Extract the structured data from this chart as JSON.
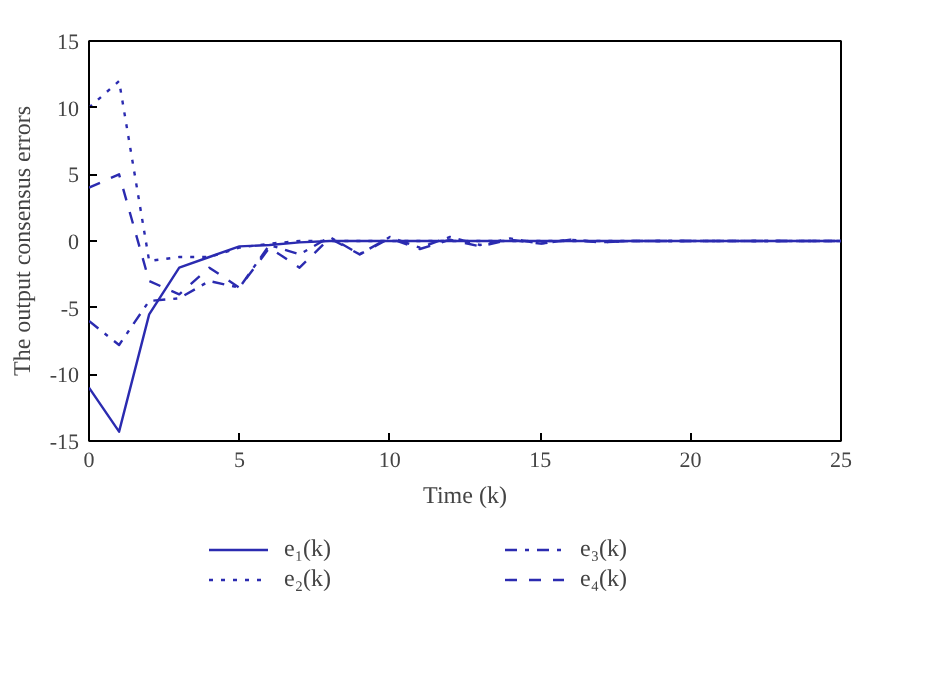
{
  "chart_data": {
    "type": "line",
    "xlabel": "Time (k)",
    "ylabel": "The output consensus errors",
    "x": [
      0,
      1,
      2,
      3,
      4,
      5,
      6,
      7,
      8,
      9,
      10,
      11,
      12,
      13,
      14,
      15,
      16,
      17,
      18,
      19,
      20,
      21,
      22,
      23,
      24,
      25
    ],
    "series": [
      {
        "name": "e₁(k)",
        "color": "#2b2bb0",
        "line_style": "solid",
        "values": [
          -11,
          -14.3,
          -5.5,
          -2,
          -1.2,
          -0.4,
          -0.3,
          -0.1,
          0,
          0,
          0,
          0,
          0,
          0,
          0,
          0,
          0,
          0,
          0,
          0,
          0,
          0,
          0,
          0,
          0,
          0
        ]
      },
      {
        "name": "e₂(k)",
        "color": "#2b2bb0",
        "line_style": "dotted",
        "values": [
          10,
          12,
          -1.5,
          -1.2,
          -1.2,
          -0.5,
          -0.2,
          0,
          0,
          0,
          0,
          0,
          0,
          0,
          0,
          0,
          0,
          0,
          0,
          0,
          0,
          0,
          0,
          0,
          0,
          0
        ]
      },
      {
        "name": "e₃(k)",
        "color": "#2b2bb0",
        "line_style": "dashdot",
        "values": [
          -6,
          -7.8,
          -4.5,
          -4.3,
          -3,
          -3.5,
          -0.3,
          -1,
          0.3,
          -1,
          0.3,
          -0.5,
          0.3,
          -0.3,
          0.2,
          -0.2,
          0.1,
          -0.1,
          0,
          0,
          0,
          0,
          0,
          0,
          0,
          0
        ]
      },
      {
        "name": "e₄(k)",
        "color": "#2b2bb0",
        "line_style": "dashed",
        "values": [
          4,
          5,
          -3,
          -4,
          -2,
          -3.5,
          -0.5,
          -2,
          0.2,
          -1,
          0.2,
          -0.6,
          0.1,
          -0.4,
          0.1,
          -0.2,
          0.1,
          -0.1,
          0,
          0,
          0,
          0,
          0,
          0,
          0,
          0
        ]
      }
    ],
    "xlim": [
      0,
      25
    ],
    "ylim": [
      -15,
      15
    ],
    "xticks": [
      0,
      5,
      10,
      15,
      20,
      25
    ],
    "yticks": [
      -15,
      -10,
      -5,
      0,
      5,
      10,
      15
    ],
    "grid": false,
    "legend": "bottom",
    "marker": "none"
  }
}
